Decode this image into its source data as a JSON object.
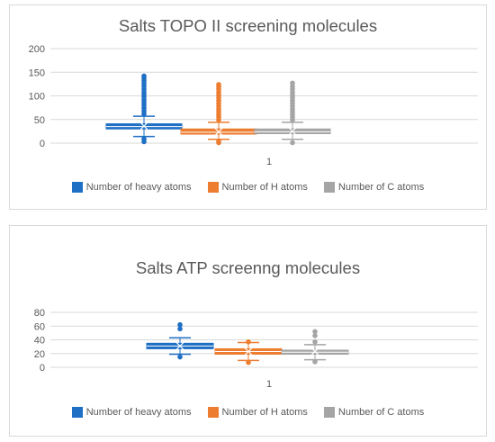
{
  "chart_data": [
    {
      "type": "box",
      "title": "Salts TOPO II screening molecules",
      "categories": [
        "1"
      ],
      "ylim": [
        0,
        200
      ],
      "yticks": [
        0,
        50,
        100,
        150,
        200
      ],
      "grid": true,
      "legend_position": "bottom",
      "series": [
        {
          "name": "Number of heavy atoms",
          "color": "#1f6fc5",
          "q1": 30,
          "median": 35,
          "q3": 41,
          "mean": 36,
          "whisker_low": 14,
          "whisker_high": 57,
          "outliers": [
            3,
            9,
            62,
            68,
            74,
            80,
            86,
            92,
            98,
            103,
            108,
            114,
            120,
            126,
            132,
            137,
            142
          ]
        },
        {
          "name": "Number of H atoms",
          "color": "#ed7d31",
          "q1": 19,
          "median": 23,
          "q3": 30,
          "mean": 24,
          "whisker_low": 8,
          "whisker_high": 44,
          "outliers": [
            1,
            4,
            49,
            55,
            60,
            66,
            72,
            78,
            84,
            90,
            96,
            102,
            108,
            114,
            119,
            124
          ]
        },
        {
          "name": "Number of C atoms",
          "color": "#a5a5a5",
          "q1": 20,
          "median": 24,
          "q3": 30,
          "mean": 25,
          "whisker_low": 8,
          "whisker_high": 44,
          "outliers": [
            1,
            49,
            55,
            60,
            66,
            72,
            78,
            84,
            90,
            96,
            102,
            108,
            114,
            120,
            127
          ]
        }
      ]
    },
    {
      "type": "box",
      "title": "Salts ATP screenng molecules",
      "categories": [
        "1"
      ],
      "ylim": [
        0,
        80
      ],
      "yticks": [
        0,
        20,
        40,
        60,
        80
      ],
      "grid": true,
      "legend_position": "bottom",
      "series": [
        {
          "name": "Number of heavy atoms",
          "color": "#1f6fc5",
          "q1": 27,
          "median": 31,
          "q3": 35,
          "mean": 31,
          "whisker_low": 19,
          "whisker_high": 43,
          "outliers": [
            15,
            56,
            62
          ]
        },
        {
          "name": "Number of H atoms",
          "color": "#ed7d31",
          "q1": 19,
          "median": 23,
          "q3": 27,
          "mean": 23,
          "whisker_low": 10,
          "whisker_high": 36,
          "outliers": [
            7,
            37
          ]
        },
        {
          "name": "Number of C atoms",
          "color": "#a5a5a5",
          "q1": 19,
          "median": 22,
          "q3": 25,
          "mean": 23,
          "whisker_low": 11,
          "whisker_high": 33,
          "outliers": [
            8,
            37,
            46,
            52
          ]
        }
      ]
    }
  ]
}
